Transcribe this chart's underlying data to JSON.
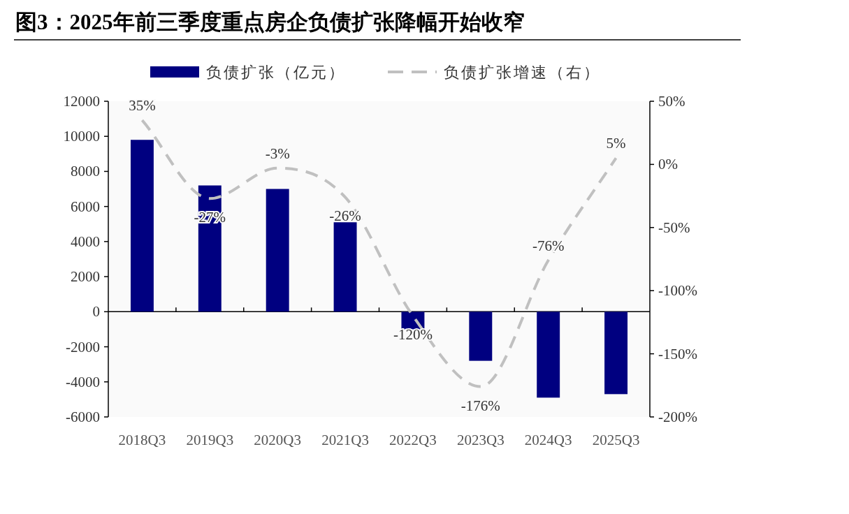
{
  "chart_data": {
    "type": "bar",
    "title": "图3：2025年前三季度重点房企负债扩张降幅开始收窄",
    "categories": [
      "2018Q3",
      "2019Q3",
      "2020Q3",
      "2021Q3",
      "2022Q3",
      "2023Q3",
      "2024Q3",
      "2025Q3"
    ],
    "series": [
      {
        "name": "负债扩张（亿元）",
        "color": "#000080",
        "values": [
          9800,
          7200,
          7000,
          5100,
          -1000,
          -2800,
          -4900,
          -4700
        ]
      },
      {
        "name": "负债扩张增速（右）",
        "type": "line",
        "axis": "y2",
        "color": "#c0c0c0",
        "line_style": "dashed",
        "values": [
          35,
          -27,
          -3,
          -26,
          -120,
          -176,
          -76,
          5
        ],
        "value_labels": [
          "35%",
          "-27%",
          "-3%",
          "-26%",
          "-120%",
          "-176%",
          "-76%",
          "5%"
        ]
      }
    ],
    "ylim": [
      -6000,
      12000
    ],
    "yticks": [
      -6000,
      -4000,
      -2000,
      0,
      2000,
      4000,
      6000,
      8000,
      10000,
      12000
    ],
    "y2lim": [
      -200,
      50
    ],
    "y2ticks": [
      {
        "value": -200,
        "label": "-200%"
      },
      {
        "value": -150,
        "label": "-150%"
      },
      {
        "value": -100,
        "label": "-100%"
      },
      {
        "value": -50,
        "label": "-50%"
      },
      {
        "value": 0,
        "label": "0%"
      },
      {
        "value": 50,
        "label": "50%"
      }
    ],
    "legend": "top"
  }
}
